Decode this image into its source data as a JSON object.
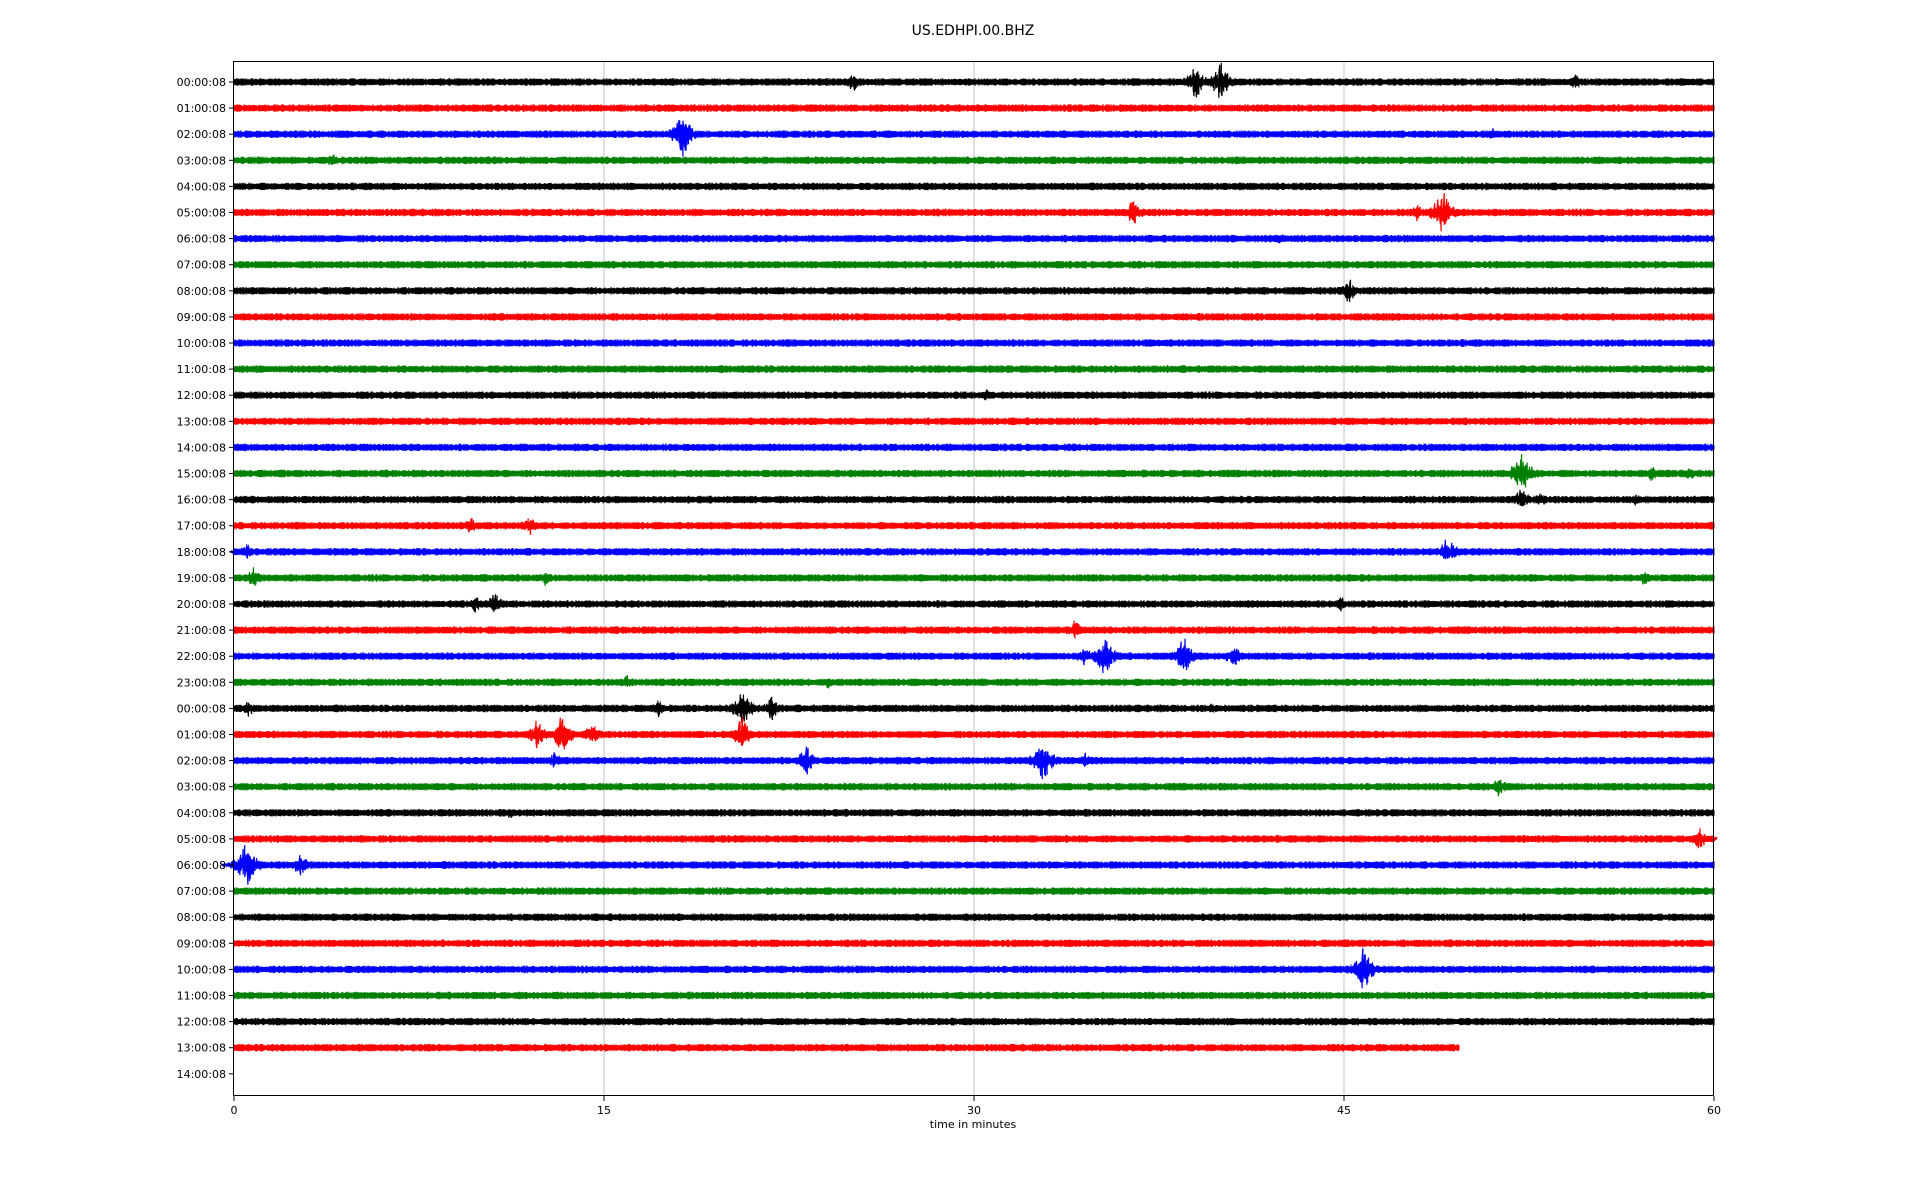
{
  "chart_data": {
    "type": "line",
    "title": "US.EDHPI.00.BHZ",
    "xlabel": "time in minutes",
    "xlim": [
      0,
      60
    ],
    "x_ticks": [
      0,
      15,
      30,
      45,
      60
    ],
    "x_tick_labels": [
      "0",
      "15",
      "30",
      "45",
      "60"
    ],
    "grid": "vertical",
    "row_labels": [
      "00:00:08",
      "01:00:08",
      "02:00:08",
      "03:00:08",
      "04:00:08",
      "05:00:08",
      "06:00:08",
      "07:00:08",
      "08:00:08",
      "09:00:08",
      "10:00:08",
      "11:00:08",
      "12:00:08",
      "13:00:08",
      "14:00:08",
      "15:00:08",
      "16:00:08",
      "17:00:08",
      "18:00:08",
      "19:00:08",
      "20:00:08",
      "21:00:08",
      "22:00:08",
      "23:00:08",
      "00:00:08",
      "01:00:08",
      "02:00:08",
      "03:00:08",
      "04:00:08",
      "05:00:08",
      "06:00:08",
      "07:00:08",
      "08:00:08",
      "09:00:08",
      "10:00:08",
      "11:00:08",
      "12:00:08",
      "13:00:08",
      "14:00:08"
    ],
    "series_colors": [
      "#000000",
      "#ff0000",
      "#0000ff",
      "#008000"
    ],
    "trace_end_minutes": [
      60,
      60,
      60,
      60,
      60,
      60,
      60,
      60,
      60,
      60,
      60,
      60,
      60,
      60,
      60,
      60,
      60,
      60,
      60,
      60,
      60,
      60,
      60,
      60,
      60,
      60,
      60,
      60,
      60,
      60,
      60,
      60,
      60,
      60,
      60,
      60,
      60,
      49.7,
      0
    ],
    "events": [
      {
        "row": 0,
        "minute": 25.1,
        "amp": 0.5
      },
      {
        "row": 0,
        "minute": 39.0,
        "amp": 0.8
      },
      {
        "row": 0,
        "minute": 40.0,
        "amp": 0.9
      },
      {
        "row": 0,
        "minute": 54.4,
        "amp": 0.4
      },
      {
        "row": 2,
        "minute": 18.2,
        "amp": 1.0
      },
      {
        "row": 2,
        "minute": 51.0,
        "amp": 0.3
      },
      {
        "row": 3,
        "minute": 4.0,
        "amp": 0.4
      },
      {
        "row": 5,
        "minute": 36.5,
        "amp": 0.7
      },
      {
        "row": 5,
        "minute": 48.0,
        "amp": 0.5
      },
      {
        "row": 5,
        "minute": 49.0,
        "amp": 1.0
      },
      {
        "row": 6,
        "minute": 42.4,
        "amp": 0.3
      },
      {
        "row": 8,
        "minute": 45.2,
        "amp": 0.6
      },
      {
        "row": 12,
        "minute": 30.5,
        "amp": 0.3
      },
      {
        "row": 15,
        "minute": 52.2,
        "amp": 1.0
      },
      {
        "row": 15,
        "minute": 57.5,
        "amp": 0.4
      },
      {
        "row": 15,
        "minute": 59.0,
        "amp": 0.4
      },
      {
        "row": 16,
        "minute": 52.2,
        "amp": 0.6
      },
      {
        "row": 16,
        "minute": 53.0,
        "amp": 0.4
      },
      {
        "row": 16,
        "minute": 56.8,
        "amp": 0.3
      },
      {
        "row": 17,
        "minute": 9.6,
        "amp": 0.4
      },
      {
        "row": 17,
        "minute": 12.0,
        "amp": 0.5
      },
      {
        "row": 18,
        "minute": 0.5,
        "amp": 0.4
      },
      {
        "row": 18,
        "minute": 49.2,
        "amp": 0.7
      },
      {
        "row": 19,
        "minute": 0.8,
        "amp": 0.5
      },
      {
        "row": 19,
        "minute": 12.6,
        "amp": 0.4
      },
      {
        "row": 19,
        "minute": 57.2,
        "amp": 0.4
      },
      {
        "row": 20,
        "minute": 9.8,
        "amp": 0.4
      },
      {
        "row": 20,
        "minute": 10.6,
        "amp": 0.6
      },
      {
        "row": 20,
        "minute": 44.9,
        "amp": 0.4
      },
      {
        "row": 21,
        "minute": 34.1,
        "amp": 0.5
      },
      {
        "row": 22,
        "minute": 34.5,
        "amp": 0.5
      },
      {
        "row": 22,
        "minute": 35.3,
        "amp": 0.9
      },
      {
        "row": 22,
        "minute": 38.5,
        "amp": 0.9
      },
      {
        "row": 22,
        "minute": 40.5,
        "amp": 0.6
      },
      {
        "row": 23,
        "minute": 15.9,
        "amp": 0.4
      },
      {
        "row": 23,
        "minute": 24.1,
        "amp": 0.3
      },
      {
        "row": 24,
        "minute": 0.6,
        "amp": 0.4
      },
      {
        "row": 24,
        "minute": 17.2,
        "amp": 0.4
      },
      {
        "row": 24,
        "minute": 20.6,
        "amp": 0.9
      },
      {
        "row": 24,
        "minute": 21.8,
        "amp": 0.6
      },
      {
        "row": 24,
        "minute": 39.7,
        "amp": 0.3
      },
      {
        "row": 25,
        "minute": 12.3,
        "amp": 0.7
      },
      {
        "row": 25,
        "minute": 13.3,
        "amp": 0.9
      },
      {
        "row": 25,
        "minute": 14.5,
        "amp": 0.6
      },
      {
        "row": 25,
        "minute": 20.6,
        "amp": 0.8
      },
      {
        "row": 26,
        "minute": 13.0,
        "amp": 0.4
      },
      {
        "row": 26,
        "minute": 23.2,
        "amp": 0.7
      },
      {
        "row": 26,
        "minute": 32.8,
        "amp": 1.0
      },
      {
        "row": 26,
        "minute": 34.5,
        "amp": 0.4
      },
      {
        "row": 27,
        "minute": 51.3,
        "amp": 0.5
      },
      {
        "row": 28,
        "minute": 11.2,
        "amp": 0.3
      },
      {
        "row": 29,
        "minute": 59.4,
        "amp": 0.6
      },
      {
        "row": 30,
        "minute": 0.5,
        "amp": 1.0
      },
      {
        "row": 30,
        "minute": 2.7,
        "amp": 0.6
      },
      {
        "row": 34,
        "minute": 45.8,
        "amp": 1.0
      }
    ]
  }
}
